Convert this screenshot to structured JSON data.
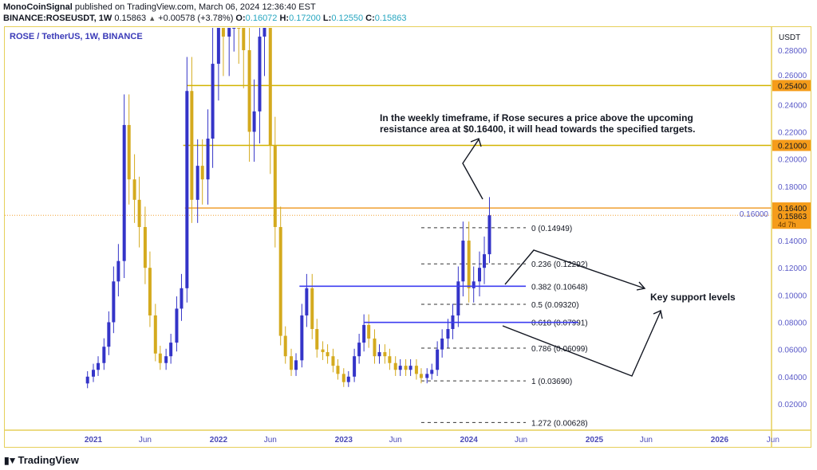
{
  "header": {
    "line1_author": "MonoCoinSignal",
    "line1_rest": "published on TradingView.com, March 06, 2024 12:36:40 EST",
    "symbol": "BINANCE:ROSEUSDT, 1W",
    "last": "0.15863",
    "change": "+0.00578 (+3.78%)",
    "o_label": "O:",
    "o": "0.16072",
    "h_label": "H:",
    "h": "0.17200",
    "l_label": "L:",
    "l": "0.12550",
    "c_label": "C:",
    "c": "0.15863"
  },
  "footer": {
    "brand": "TradingView",
    "logo_icon": "tradingview-logo-icon"
  },
  "chart_data": {
    "type": "candlestick",
    "title": "ROSE / TetherUS, 1W, BINANCE",
    "currency_label": "USDT",
    "colors": {
      "up": "#3434c8",
      "down": "#d4aa1e",
      "resistance": "#d2b400",
      "price_tag": "#f59c1a",
      "support": "#3c3cf0"
    },
    "y_ticks": [
      "0.02000",
      "0.04000",
      "0.06000",
      "0.08000",
      "0.10000",
      "0.12000",
      "0.14000",
      "0.16000",
      "0.18000",
      "0.20000",
      "0.22000",
      "0.24000",
      "0.26000",
      "0.28000"
    ],
    "ylim": [
      0,
      0.297
    ],
    "x_ticks": [
      {
        "label": "2021",
        "date": "2021-01-01",
        "bold": true
      },
      {
        "label": "Jun",
        "date": "2021-06-01"
      },
      {
        "label": "2022",
        "date": "2022-01-01",
        "bold": true
      },
      {
        "label": "Jun",
        "date": "2022-06-01"
      },
      {
        "label": "2023",
        "date": "2023-01-01",
        "bold": true
      },
      {
        "label": "Jun",
        "date": "2023-06-01"
      },
      {
        "label": "2024",
        "date": "2024-01-01",
        "bold": true
      },
      {
        "label": "Jun",
        "date": "2024-06-01"
      },
      {
        "label": "2025",
        "date": "2025-01-01",
        "bold": true
      },
      {
        "label": "Jun",
        "date": "2025-06-01"
      },
      {
        "label": "2026",
        "date": "2026-01-01",
        "bold": true
      },
      {
        "label": "Jun",
        "date": "2026-06-01"
      }
    ],
    "closes": [
      [
        "2020-12-15",
        0.04
      ],
      [
        "2021-01-01",
        0.045
      ],
      [
        "2021-01-15",
        0.05
      ],
      [
        "2021-02-01",
        0.062
      ],
      [
        "2021-02-15",
        0.08
      ],
      [
        "2021-03-01",
        0.11
      ],
      [
        "2021-03-15",
        0.125
      ],
      [
        "2021-04-01",
        0.225
      ],
      [
        "2021-04-15",
        0.185
      ],
      [
        "2021-05-01",
        0.17
      ],
      [
        "2021-05-15",
        0.15
      ],
      [
        "2021-06-01",
        0.12
      ],
      [
        "2021-06-15",
        0.085
      ],
      [
        "2021-07-01",
        0.057
      ],
      [
        "2021-07-15",
        0.05
      ],
      [
        "2021-08-01",
        0.055
      ],
      [
        "2021-08-15",
        0.065
      ],
      [
        "2021-09-01",
        0.09
      ],
      [
        "2021-09-15",
        0.105
      ],
      [
        "2021-10-01",
        0.25
      ],
      [
        "2021-10-15",
        0.17
      ],
      [
        "2021-11-01",
        0.195
      ],
      [
        "2021-11-15",
        0.185
      ],
      [
        "2021-12-01",
        0.215
      ],
      [
        "2021-12-15",
        0.27
      ],
      [
        "2022-01-01",
        0.33
      ],
      [
        "2022-01-15",
        0.29
      ],
      [
        "2022-02-01",
        0.31
      ],
      [
        "2022-02-15",
        0.35
      ],
      [
        "2022-03-01",
        0.3
      ],
      [
        "2022-03-15",
        0.28
      ],
      [
        "2022-04-01",
        0.22
      ],
      [
        "2022-04-15",
        0.235
      ],
      [
        "2022-05-01",
        0.29
      ],
      [
        "2022-05-15",
        0.32
      ],
      [
        "2022-06-01",
        0.21
      ],
      [
        "2022-06-15",
        0.15
      ],
      [
        "2022-07-01",
        0.07
      ],
      [
        "2022-07-15",
        0.055
      ],
      [
        "2022-08-01",
        0.045
      ],
      [
        "2022-08-15",
        0.052
      ],
      [
        "2022-09-01",
        0.085
      ],
      [
        "2022-09-15",
        0.105
      ],
      [
        "2022-10-01",
        0.075
      ],
      [
        "2022-10-15",
        0.06
      ],
      [
        "2022-11-01",
        0.058
      ],
      [
        "2022-11-15",
        0.055
      ],
      [
        "2022-12-01",
        0.048
      ],
      [
        "2022-12-15",
        0.042
      ],
      [
        "2023-01-01",
        0.036
      ],
      [
        "2023-01-15",
        0.04
      ],
      [
        "2023-02-01",
        0.055
      ],
      [
        "2023-02-15",
        0.065
      ],
      [
        "2023-03-01",
        0.078
      ],
      [
        "2023-03-15",
        0.068
      ],
      [
        "2023-04-01",
        0.055
      ],
      [
        "2023-04-15",
        0.058
      ],
      [
        "2023-05-01",
        0.055
      ],
      [
        "2023-05-15",
        0.05
      ],
      [
        "2023-06-01",
        0.045
      ],
      [
        "2023-06-15",
        0.048
      ],
      [
        "2023-07-01",
        0.045
      ],
      [
        "2023-07-15",
        0.048
      ],
      [
        "2023-08-01",
        0.042
      ],
      [
        "2023-08-15",
        0.039
      ],
      [
        "2023-09-01",
        0.042
      ],
      [
        "2023-09-15",
        0.045
      ],
      [
        "2023-10-01",
        0.06
      ],
      [
        "2023-10-15",
        0.068
      ],
      [
        "2023-11-01",
        0.075
      ],
      [
        "2023-11-15",
        0.085
      ],
      [
        "2023-12-01",
        0.11
      ],
      [
        "2023-12-15",
        0.14
      ],
      [
        "2024-01-01",
        0.105
      ],
      [
        "2024-01-15",
        0.11
      ],
      [
        "2024-02-01",
        0.12
      ],
      [
        "2024-02-15",
        0.13
      ],
      [
        "2024-03-01",
        0.15863
      ]
    ],
    "resistance_levels": [
      {
        "price": 0.254,
        "label": "0.25400",
        "start": "2021-10-01"
      },
      {
        "price": 0.21,
        "label": "0.21000",
        "start": "2021-09-20"
      },
      {
        "price": 0.164,
        "label": "0.16400",
        "start": "2021-09-25"
      }
    ],
    "current_price": {
      "price": 0.15863,
      "label": "0.15863",
      "countdown": "4d 7h"
    },
    "support_lines": [
      {
        "price": 0.10648,
        "start": "2022-08-25",
        "end": "2024-06-15"
      },
      {
        "price": 0.07991,
        "start": "2023-03-01",
        "end": "2024-11-15"
      }
    ],
    "fibonacci": {
      "start": "2023-08-15",
      "end": "2024-06-15",
      "levels": [
        {
          "ratio": "0",
          "price": 0.14949,
          "label": "0 (0.14949)"
        },
        {
          "ratio": "0.236",
          "price": 0.12292,
          "label": "0.236 (0.12292)"
        },
        {
          "ratio": "0.382",
          "price": 0.10648,
          "label": "0.382 (0.10648)"
        },
        {
          "ratio": "0.5",
          "price": 0.0932,
          "label": "0.5 (0.09320)"
        },
        {
          "ratio": "0.618",
          "price": 0.07991,
          "label": "0.618 (0.07991)"
        },
        {
          "ratio": "0.786",
          "price": 0.06099,
          "label": "0.786 (0.06099)"
        },
        {
          "ratio": "1",
          "price": 0.0369,
          "label": "1 (0.03690)"
        },
        {
          "ratio": "1.272",
          "price": 0.00628,
          "label": "1.272 (0.00628)"
        }
      ]
    },
    "annotations": {
      "target_note_line1": "In the weekly timeframe, if Rose secures a price above the upcoming",
      "target_note_line2": "resistance area at $0.16400, it will head towards the specified targets.",
      "support_note": "Key support levels"
    }
  }
}
